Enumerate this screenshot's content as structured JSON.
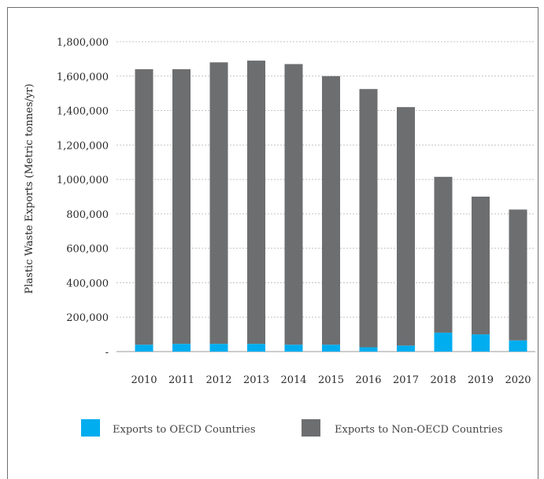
{
  "chart_data": {
    "type": "bar",
    "stacked": true,
    "title": "",
    "xlabel": "",
    "ylabel": "Plastic Waste Exports (Metric tonnes/yr)",
    "ylim": [
      0,
      1800000
    ],
    "yticks": [
      0,
      200000,
      400000,
      600000,
      800000,
      1000000,
      1200000,
      1400000,
      1600000,
      1800000
    ],
    "ytick_labels": [
      "-",
      "200,000",
      "400,000",
      "600,000",
      "800,000",
      "1,000,000",
      "1,200,000",
      "1,400,000",
      "1,600,000",
      "1,800,000"
    ],
    "grid": "horizontal dotted",
    "legend_position": "bottom",
    "categories": [
      "2010",
      "2011",
      "2012",
      "2013",
      "2014",
      "2015",
      "2016",
      "2017",
      "2018",
      "2019",
      "2020"
    ],
    "series": [
      {
        "name": "Exports to OECD Countries",
        "color": "#00adef",
        "values": [
          40000,
          45000,
          45000,
          45000,
          40000,
          40000,
          25000,
          35000,
          110000,
          100000,
          65000
        ]
      },
      {
        "name": "Exports to Non-OECD Countries",
        "color": "#6d6e70",
        "values": [
          1600000,
          1595000,
          1635000,
          1645000,
          1630000,
          1560000,
          1500000,
          1385000,
          905000,
          800000,
          760000
        ]
      }
    ]
  }
}
